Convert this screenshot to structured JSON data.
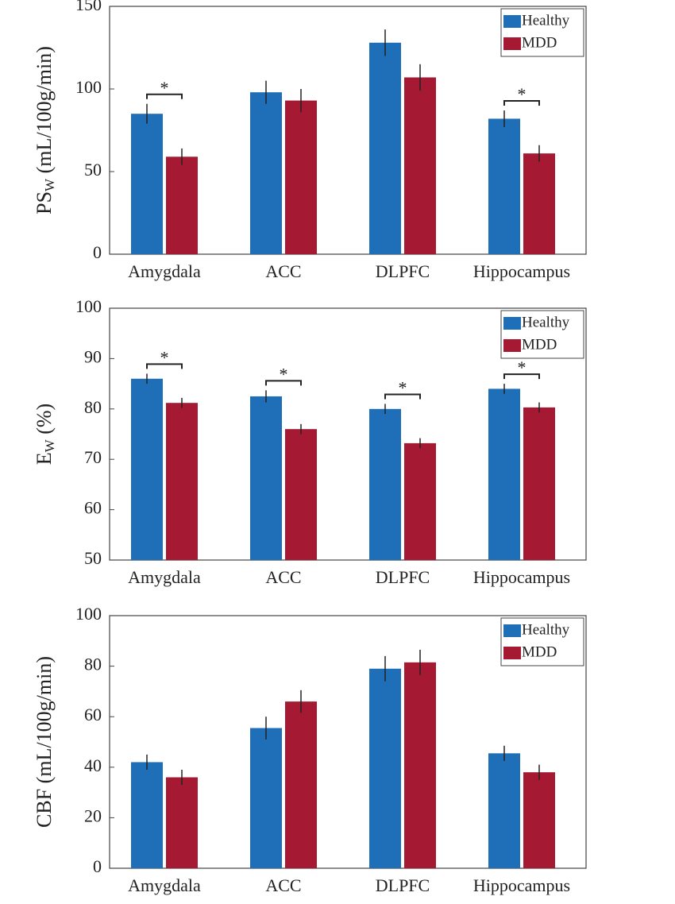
{
  "chart_data": [
    {
      "type": "bar",
      "ylabel": {
        "text": "PS",
        "sub": "W",
        "suffix": " (mL/100g/min)"
      },
      "categories": [
        "Amygdala",
        "ACC",
        "DLPFC",
        "Hippocampus"
      ],
      "series": [
        {
          "name": "Healthy",
          "color": "#1f6fb8",
          "values": [
            85,
            98,
            128,
            82
          ],
          "errors": [
            6,
            7,
            8,
            5
          ]
        },
        {
          "name": "MDD",
          "color": "#a51a32",
          "values": [
            59,
            93,
            107,
            61
          ],
          "errors": [
            5,
            7,
            8,
            5
          ]
        }
      ],
      "significance": [
        "*",
        null,
        null,
        "*"
      ],
      "ylim": [
        0,
        150
      ],
      "yticks": [
        0,
        50,
        100,
        150
      ],
      "legend": "upper right"
    },
    {
      "type": "bar",
      "ylabel": {
        "text": "E",
        "sub": "W",
        "suffix": " (%)"
      },
      "categories": [
        "Amygdala",
        "ACC",
        "DLPFC",
        "Hippocampus"
      ],
      "series": [
        {
          "name": "Healthy",
          "color": "#1f6fb8",
          "values": [
            86,
            82.5,
            80,
            84
          ],
          "errors": [
            1,
            1.2,
            1,
            1
          ]
        },
        {
          "name": "MDD",
          "color": "#a51a32",
          "values": [
            81.2,
            76,
            73.2,
            80.3
          ],
          "errors": [
            1,
            1,
            1,
            1
          ]
        }
      ],
      "significance": [
        "*",
        "*",
        "*",
        "*"
      ],
      "ylim": [
        50,
        100
      ],
      "yticks": [
        50,
        60,
        70,
        80,
        90,
        100
      ],
      "legend": "upper right"
    },
    {
      "type": "bar",
      "ylabel": {
        "text": "CBF (mL/100g/min)"
      },
      "categories": [
        "Amygdala",
        "ACC",
        "DLPFC",
        "Hippocampus"
      ],
      "series": [
        {
          "name": "Healthy",
          "color": "#1f6fb8",
          "values": [
            42,
            55.5,
            79,
            45.5
          ],
          "errors": [
            3,
            4.5,
            5,
            3
          ]
        },
        {
          "name": "MDD",
          "color": "#a51a32",
          "values": [
            36,
            66,
            81.5,
            38
          ],
          "errors": [
            3,
            4.5,
            5,
            3
          ]
        }
      ],
      "significance": [
        null,
        null,
        null,
        null
      ],
      "ylim": [
        0,
        100
      ],
      "yticks": [
        0,
        20,
        40,
        60,
        80,
        100
      ],
      "legend": "upper right"
    }
  ]
}
